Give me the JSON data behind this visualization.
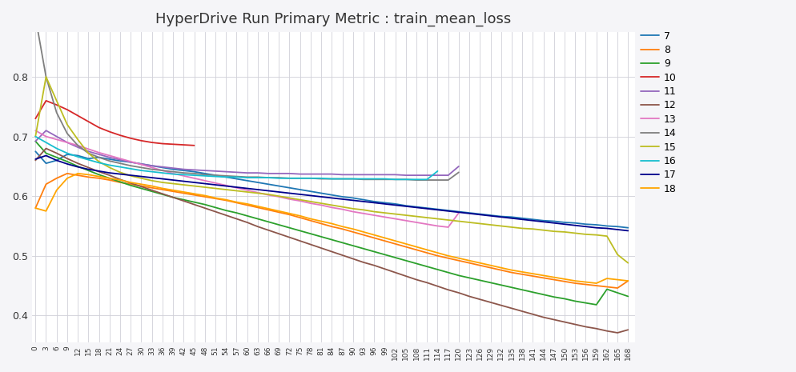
{
  "title": "HyperDrive Run Primary Metric : train_mean_loss",
  "background_color": "#f5f5f8",
  "plot_bg_color": "#ffffff",
  "grid_color": "#d0d0d8",
  "ylim": [
    0.355,
    0.875
  ],
  "xlim": [
    -1,
    170
  ],
  "legend_labels": [
    "7",
    "8",
    "9",
    "10",
    "11",
    "12",
    "13",
    "14",
    "15",
    "16",
    "17",
    "18"
  ],
  "colors": {
    "7": "#1f77b4",
    "8": "#ff7f0e",
    "9": "#2ca02c",
    "10": "#d62728",
    "11": "#9467bd",
    "12": "#8c564b",
    "13": "#e377c2",
    "14": "#7f7f7f",
    "15": "#bcbd22",
    "16": "#17becf",
    "17": "#00008b",
    "18": "#ffa500"
  },
  "yticks": [
    0.4,
    0.5,
    0.6,
    0.7,
    0.8
  ],
  "runs": {
    "7": {
      "x": [
        0,
        3,
        6,
        9,
        12,
        15,
        18,
        21,
        24,
        27,
        30,
        33,
        36,
        39,
        42,
        45,
        48,
        51,
        54,
        57,
        60,
        63,
        66,
        69,
        72,
        75,
        78,
        81,
        84,
        87,
        90,
        93,
        96,
        99,
        102,
        105,
        108,
        111,
        114,
        117,
        120,
        123,
        126,
        129,
        132,
        135,
        138,
        141,
        144,
        147,
        150,
        153,
        156,
        159,
        162,
        165,
        168
      ],
      "y": [
        0.675,
        0.655,
        0.66,
        0.67,
        0.668,
        0.663,
        0.665,
        0.662,
        0.659,
        0.657,
        0.654,
        0.651,
        0.648,
        0.645,
        0.643,
        0.641,
        0.638,
        0.635,
        0.632,
        0.629,
        0.626,
        0.623,
        0.62,
        0.617,
        0.614,
        0.611,
        0.608,
        0.605,
        0.602,
        0.599,
        0.597,
        0.594,
        0.591,
        0.589,
        0.587,
        0.584,
        0.582,
        0.58,
        0.578,
        0.576,
        0.574,
        0.572,
        0.57,
        0.568,
        0.566,
        0.565,
        0.563,
        0.561,
        0.559,
        0.558,
        0.556,
        0.555,
        0.553,
        0.552,
        0.55,
        0.549,
        0.547
      ]
    },
    "8": {
      "x": [
        0,
        3,
        6,
        9,
        12,
        15,
        18,
        21,
        24,
        27,
        30,
        33,
        36,
        39,
        42,
        45,
        48,
        51,
        54,
        57,
        60,
        63,
        66,
        69,
        72,
        75,
        78,
        81,
        84,
        87,
        90,
        93,
        96,
        99,
        102,
        105,
        108,
        111,
        114,
        117,
        120,
        123,
        126,
        129,
        132,
        135,
        138,
        141,
        144,
        147,
        150,
        153,
        156,
        159,
        162,
        165,
        168
      ],
      "y": [
        0.58,
        0.62,
        0.63,
        0.638,
        0.635,
        0.632,
        0.63,
        0.627,
        0.623,
        0.62,
        0.617,
        0.614,
        0.611,
        0.608,
        0.605,
        0.602,
        0.599,
        0.596,
        0.593,
        0.589,
        0.585,
        0.581,
        0.577,
        0.573,
        0.569,
        0.564,
        0.559,
        0.554,
        0.549,
        0.545,
        0.54,
        0.535,
        0.53,
        0.525,
        0.52,
        0.515,
        0.51,
        0.505,
        0.5,
        0.496,
        0.492,
        0.488,
        0.484,
        0.48,
        0.476,
        0.472,
        0.469,
        0.466,
        0.463,
        0.46,
        0.457,
        0.454,
        0.452,
        0.45,
        0.448,
        0.446,
        0.458
      ]
    },
    "9": {
      "x": [
        0,
        3,
        6,
        9,
        12,
        15,
        18,
        21,
        24,
        27,
        30,
        33,
        36,
        39,
        42,
        45,
        48,
        51,
        54,
        57,
        60,
        63,
        66,
        69,
        72,
        75,
        78,
        81,
        84,
        87,
        90,
        93,
        96,
        99,
        102,
        105,
        108,
        111,
        114,
        117,
        120,
        123,
        126,
        129,
        132,
        135,
        138,
        141,
        144,
        147,
        150,
        153,
        156,
        159,
        162,
        165,
        168
      ],
      "y": [
        0.692,
        0.672,
        0.665,
        0.658,
        0.65,
        0.643,
        0.636,
        0.63,
        0.624,
        0.618,
        0.613,
        0.608,
        0.603,
        0.598,
        0.594,
        0.59,
        0.586,
        0.581,
        0.576,
        0.572,
        0.567,
        0.562,
        0.557,
        0.552,
        0.547,
        0.542,
        0.537,
        0.532,
        0.527,
        0.522,
        0.517,
        0.512,
        0.507,
        0.502,
        0.497,
        0.492,
        0.487,
        0.482,
        0.477,
        0.472,
        0.467,
        0.463,
        0.459,
        0.455,
        0.451,
        0.447,
        0.443,
        0.439,
        0.435,
        0.431,
        0.428,
        0.424,
        0.421,
        0.418,
        0.444,
        0.438,
        0.432
      ]
    },
    "10": {
      "x": [
        0,
        3,
        6,
        9,
        12,
        15,
        18,
        21,
        24,
        27,
        30,
        33,
        36,
        39,
        42,
        45
      ],
      "y": [
        0.73,
        0.76,
        0.753,
        0.745,
        0.735,
        0.725,
        0.715,
        0.708,
        0.702,
        0.697,
        0.693,
        0.69,
        0.688,
        0.687,
        0.686,
        0.685
      ]
    },
    "11": {
      "x": [
        0,
        3,
        6,
        9,
        12,
        15,
        18,
        21,
        24,
        27,
        30,
        33,
        36,
        39,
        42,
        45,
        48,
        51,
        54,
        57,
        60,
        63,
        66,
        69,
        72,
        75,
        78,
        81,
        84,
        87,
        90,
        93,
        96,
        99,
        102,
        105,
        108,
        111,
        114,
        117,
        120
      ],
      "y": [
        0.692,
        0.71,
        0.7,
        0.69,
        0.682,
        0.675,
        0.67,
        0.665,
        0.661,
        0.657,
        0.654,
        0.651,
        0.649,
        0.647,
        0.645,
        0.644,
        0.643,
        0.642,
        0.641,
        0.64,
        0.639,
        0.639,
        0.638,
        0.638,
        0.638,
        0.637,
        0.637,
        0.637,
        0.637,
        0.636,
        0.636,
        0.636,
        0.636,
        0.636,
        0.636,
        0.635,
        0.635,
        0.635,
        0.635,
        0.635,
        0.65
      ]
    },
    "12": {
      "x": [
        0,
        3,
        6,
        9,
        12,
        15,
        18,
        21,
        24,
        27,
        30,
        33,
        36,
        39,
        42,
        45,
        48,
        51,
        54,
        57,
        60,
        63,
        66,
        69,
        72,
        75,
        78,
        81,
        84,
        87,
        90,
        93,
        96,
        99,
        102,
        105,
        108,
        111,
        114,
        117,
        120,
        123,
        126,
        129,
        132,
        135,
        138,
        141,
        144,
        147,
        150,
        153,
        156,
        159,
        162,
        165,
        168
      ],
      "y": [
        0.66,
        0.68,
        0.672,
        0.663,
        0.655,
        0.648,
        0.641,
        0.635,
        0.628,
        0.622,
        0.616,
        0.61,
        0.604,
        0.598,
        0.592,
        0.586,
        0.58,
        0.574,
        0.568,
        0.562,
        0.556,
        0.549,
        0.543,
        0.537,
        0.531,
        0.525,
        0.519,
        0.513,
        0.507,
        0.501,
        0.495,
        0.489,
        0.484,
        0.478,
        0.472,
        0.466,
        0.46,
        0.455,
        0.449,
        0.443,
        0.438,
        0.432,
        0.427,
        0.422,
        0.417,
        0.412,
        0.407,
        0.402,
        0.397,
        0.393,
        0.389,
        0.385,
        0.381,
        0.378,
        0.374,
        0.371,
        0.376
      ]
    },
    "13": {
      "x": [
        0,
        3,
        6,
        9,
        12,
        15,
        18,
        21,
        24,
        27,
        30,
        33,
        36,
        39,
        42,
        45,
        48,
        51,
        54,
        57,
        60,
        63,
        66,
        69,
        72,
        75,
        78,
        81,
        84,
        87,
        90,
        93,
        96,
        99,
        102,
        105,
        108,
        111,
        114,
        117,
        120
      ],
      "y": [
        0.71,
        0.7,
        0.695,
        0.69,
        0.685,
        0.679,
        0.673,
        0.668,
        0.663,
        0.658,
        0.653,
        0.648,
        0.643,
        0.638,
        0.634,
        0.63,
        0.626,
        0.622,
        0.618,
        0.614,
        0.61,
        0.606,
        0.602,
        0.599,
        0.595,
        0.592,
        0.588,
        0.585,
        0.581,
        0.578,
        0.574,
        0.571,
        0.568,
        0.565,
        0.562,
        0.559,
        0.556,
        0.553,
        0.55,
        0.548,
        0.572
      ]
    },
    "14": {
      "x": [
        0,
        3,
        6,
        9,
        12,
        15,
        18,
        21,
        24,
        27,
        30,
        33,
        36,
        39,
        42,
        45,
        48,
        51,
        54,
        57,
        60,
        63,
        66,
        69,
        72,
        75,
        78,
        81,
        84,
        87,
        90,
        93,
        96,
        99,
        102,
        105,
        108,
        111,
        114,
        117,
        120
      ],
      "y": [
        0.9,
        0.8,
        0.74,
        0.705,
        0.685,
        0.672,
        0.665,
        0.659,
        0.655,
        0.651,
        0.648,
        0.645,
        0.643,
        0.641,
        0.639,
        0.638,
        0.636,
        0.635,
        0.634,
        0.633,
        0.632,
        0.632,
        0.631,
        0.631,
        0.63,
        0.63,
        0.63,
        0.629,
        0.629,
        0.629,
        0.629,
        0.628,
        0.628,
        0.628,
        0.628,
        0.628,
        0.627,
        0.627,
        0.627,
        0.627,
        0.64
      ]
    },
    "15": {
      "x": [
        0,
        3,
        6,
        9,
        12,
        15,
        18,
        21,
        24,
        27,
        30,
        33,
        36,
        39,
        42,
        45,
        48,
        51,
        54,
        57,
        60,
        63,
        66,
        69,
        72,
        75,
        78,
        81,
        84,
        87,
        90,
        93,
        96,
        99,
        102,
        105,
        108,
        111,
        114,
        117,
        120,
        123,
        126,
        129,
        132,
        135,
        138,
        141,
        144,
        147,
        150,
        153,
        156,
        159,
        162,
        165,
        168
      ],
      "y": [
        0.7,
        0.8,
        0.76,
        0.72,
        0.695,
        0.672,
        0.658,
        0.648,
        0.64,
        0.634,
        0.63,
        0.626,
        0.623,
        0.621,
        0.619,
        0.617,
        0.615,
        0.613,
        0.611,
        0.609,
        0.607,
        0.605,
        0.603,
        0.6,
        0.597,
        0.594,
        0.591,
        0.588,
        0.585,
        0.582,
        0.579,
        0.577,
        0.574,
        0.572,
        0.57,
        0.568,
        0.566,
        0.564,
        0.562,
        0.56,
        0.558,
        0.556,
        0.554,
        0.552,
        0.55,
        0.548,
        0.546,
        0.545,
        0.543,
        0.541,
        0.54,
        0.538,
        0.536,
        0.535,
        0.533,
        0.502,
        0.488
      ]
    },
    "16": {
      "x": [
        0,
        3,
        6,
        9,
        12,
        15,
        18,
        21,
        24,
        27,
        30,
        33,
        36,
        39,
        42,
        45,
        48,
        51,
        54,
        57,
        60,
        63,
        66,
        69,
        72,
        75,
        78,
        81,
        84,
        87,
        90,
        93,
        96,
        99,
        102,
        105,
        108,
        111,
        114
      ],
      "y": [
        0.7,
        0.69,
        0.68,
        0.672,
        0.666,
        0.661,
        0.656,
        0.652,
        0.649,
        0.646,
        0.643,
        0.641,
        0.639,
        0.637,
        0.636,
        0.635,
        0.634,
        0.633,
        0.632,
        0.632,
        0.631,
        0.631,
        0.631,
        0.63,
        0.63,
        0.63,
        0.63,
        0.63,
        0.629,
        0.629,
        0.629,
        0.629,
        0.629,
        0.629,
        0.628,
        0.628,
        0.628,
        0.628,
        0.642
      ]
    },
    "17": {
      "x": [
        0,
        3,
        6,
        9,
        12,
        15,
        18,
        21,
        24,
        27,
        30,
        33,
        36,
        39,
        42,
        45,
        48,
        51,
        54,
        57,
        60,
        63,
        66,
        69,
        72,
        75,
        78,
        81,
        84,
        87,
        90,
        93,
        96,
        99,
        102,
        105,
        108,
        111,
        114,
        117,
        120,
        123,
        126,
        129,
        132,
        135,
        138,
        141,
        144,
        147,
        150,
        153,
        156,
        159,
        162,
        165,
        168
      ],
      "y": [
        0.662,
        0.668,
        0.66,
        0.654,
        0.649,
        0.645,
        0.642,
        0.639,
        0.637,
        0.635,
        0.633,
        0.631,
        0.629,
        0.627,
        0.625,
        0.623,
        0.621,
        0.619,
        0.617,
        0.615,
        0.613,
        0.611,
        0.609,
        0.607,
        0.605,
        0.603,
        0.601,
        0.599,
        0.597,
        0.595,
        0.593,
        0.591,
        0.589,
        0.587,
        0.585,
        0.583,
        0.581,
        0.579,
        0.577,
        0.575,
        0.573,
        0.571,
        0.569,
        0.567,
        0.565,
        0.563,
        0.561,
        0.559,
        0.557,
        0.555,
        0.553,
        0.551,
        0.549,
        0.547,
        0.546,
        0.544,
        0.542
      ]
    },
    "18": {
      "x": [
        0,
        3,
        6,
        9,
        12,
        15,
        18,
        21,
        24,
        27,
        30,
        33,
        36,
        39,
        42,
        45,
        48,
        51,
        54,
        57,
        60,
        63,
        66,
        69,
        72,
        75,
        78,
        81,
        84,
        87,
        90,
        93,
        96,
        99,
        102,
        105,
        108,
        111,
        114,
        117,
        120,
        123,
        126,
        129,
        132,
        135,
        138,
        141,
        144,
        147,
        150,
        153,
        156,
        159,
        162,
        165,
        168
      ],
      "y": [
        0.58,
        0.575,
        0.61,
        0.63,
        0.638,
        0.636,
        0.633,
        0.63,
        0.627,
        0.623,
        0.62,
        0.617,
        0.613,
        0.61,
        0.607,
        0.604,
        0.601,
        0.597,
        0.594,
        0.59,
        0.587,
        0.583,
        0.579,
        0.575,
        0.571,
        0.567,
        0.562,
        0.558,
        0.554,
        0.549,
        0.545,
        0.54,
        0.535,
        0.53,
        0.525,
        0.52,
        0.515,
        0.51,
        0.505,
        0.5,
        0.496,
        0.492,
        0.488,
        0.484,
        0.48,
        0.476,
        0.473,
        0.47,
        0.467,
        0.464,
        0.461,
        0.458,
        0.456,
        0.454,
        0.462,
        0.46,
        0.458
      ]
    }
  }
}
